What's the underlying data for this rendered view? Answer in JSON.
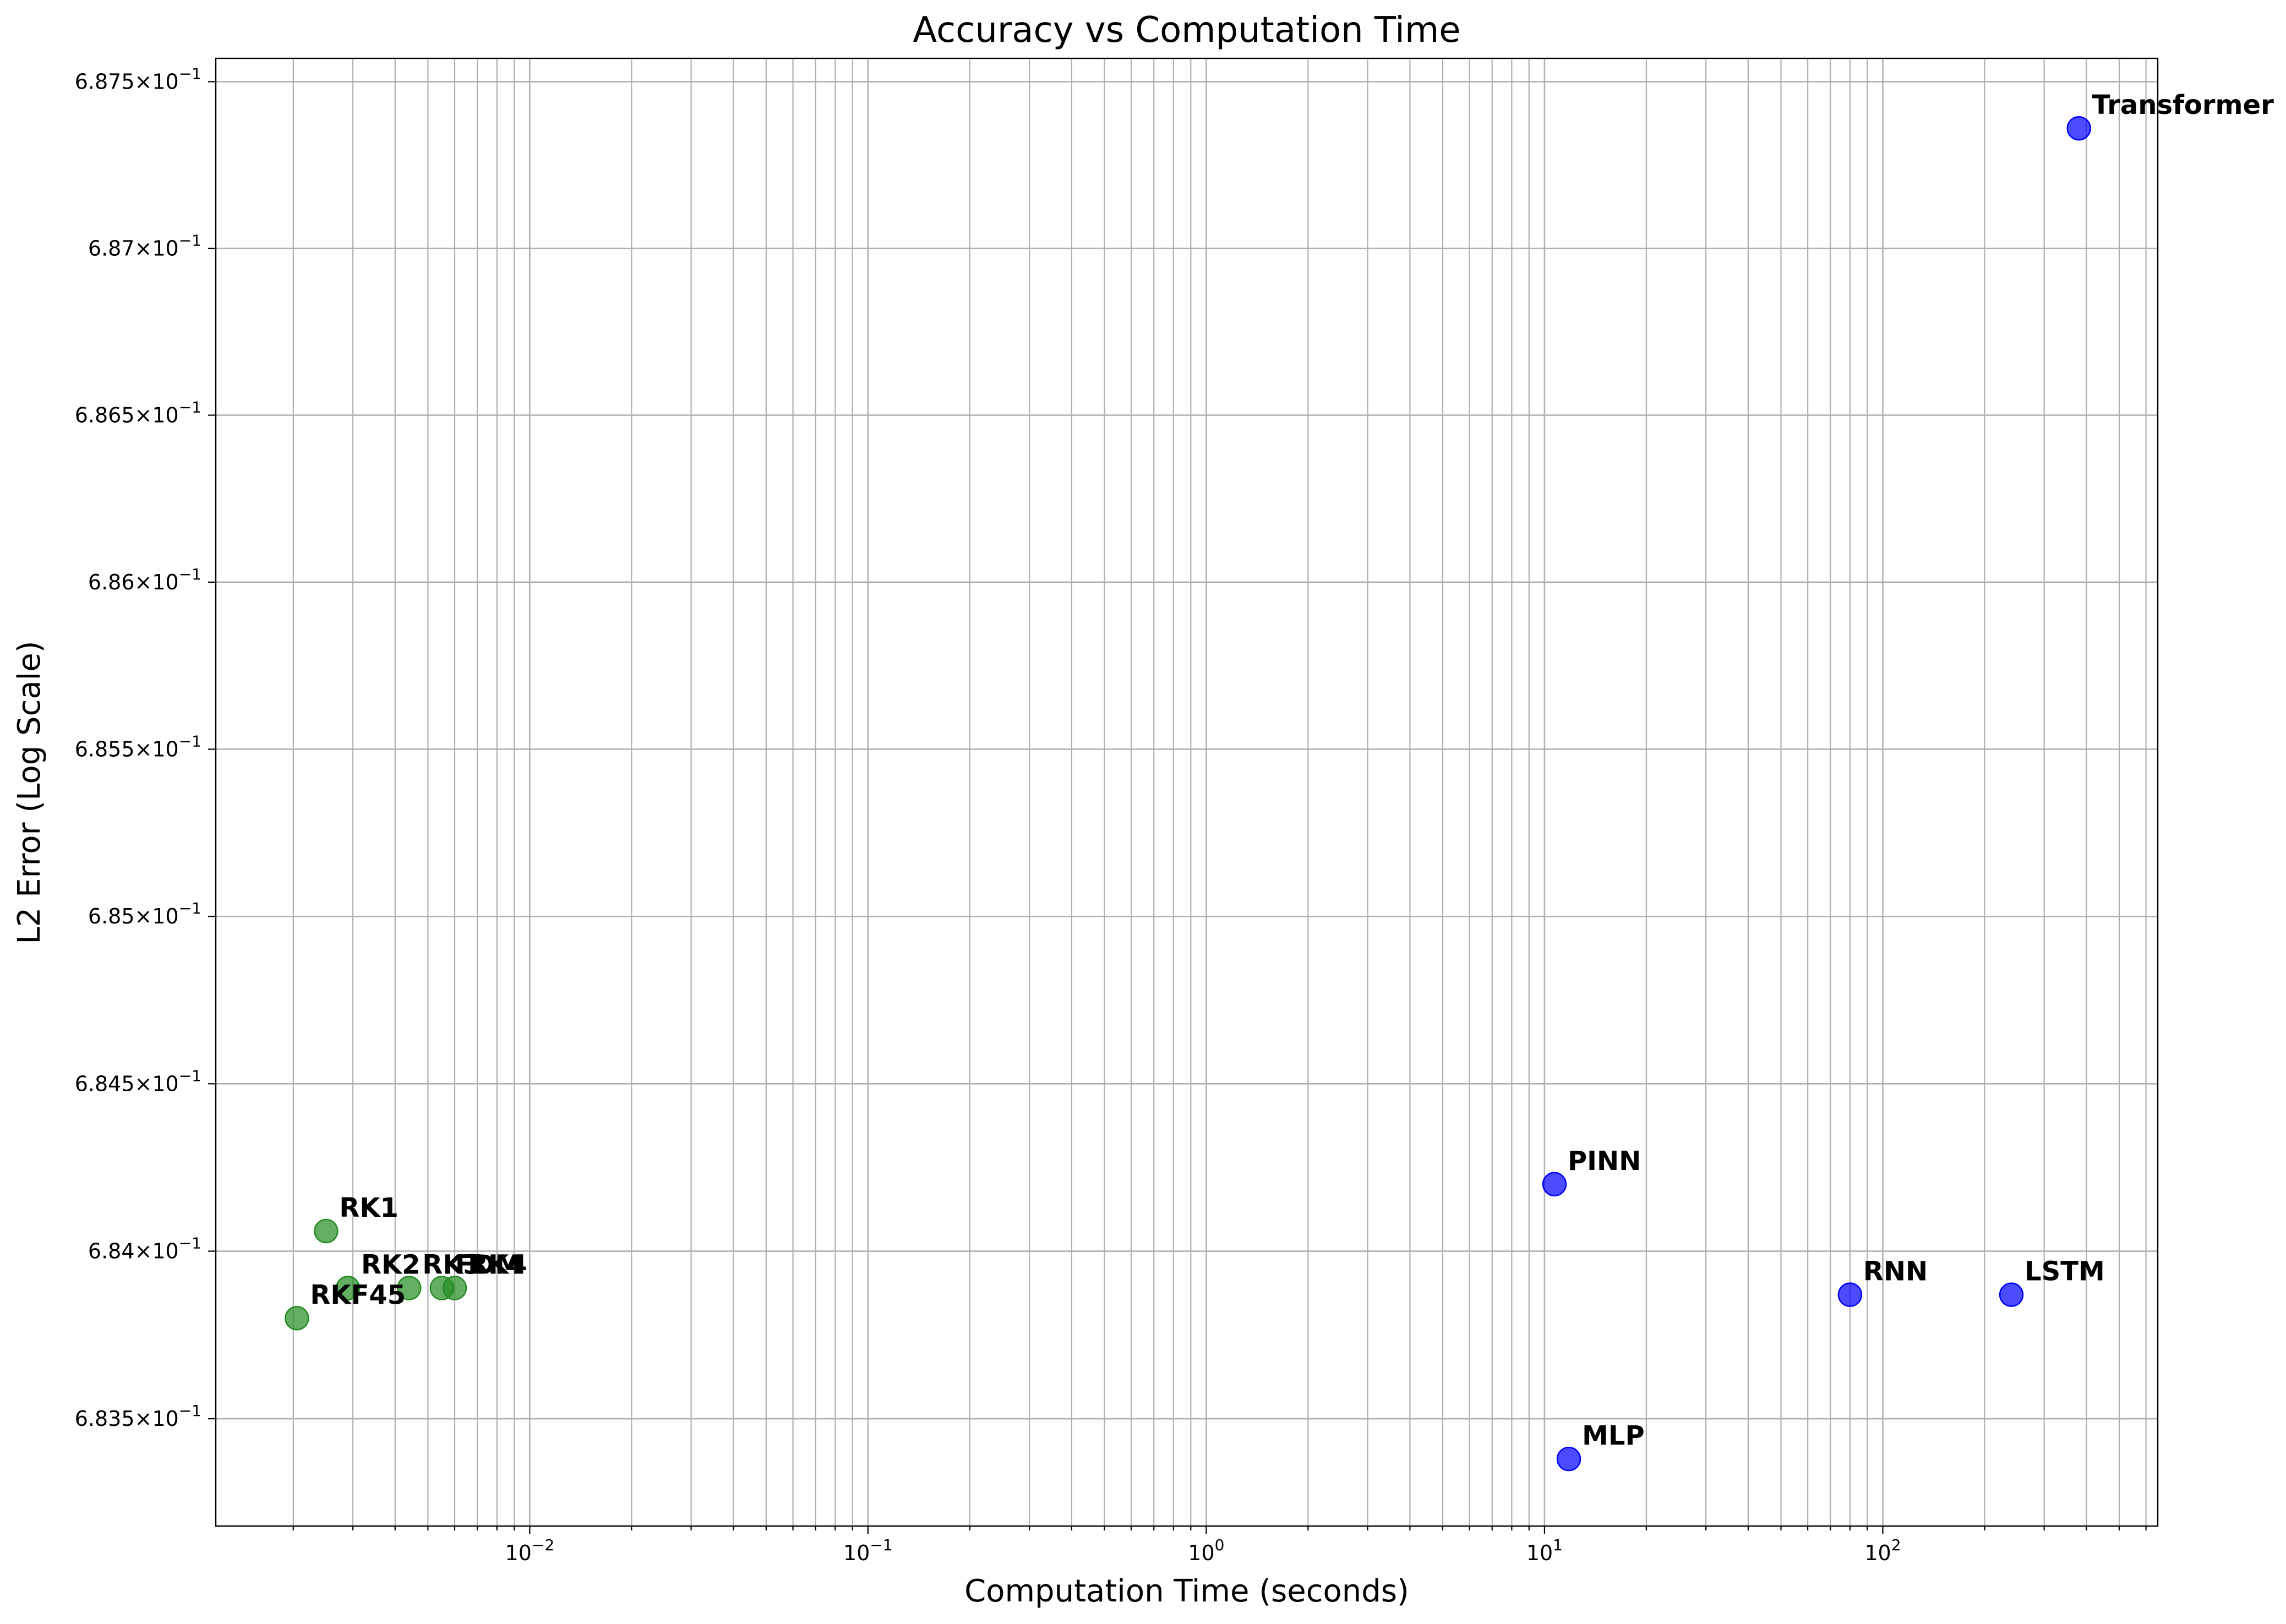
{
  "chart_data": {
    "type": "scatter",
    "title": "Accuracy vs Computation Time",
    "xlabel": "Computation Time (seconds)",
    "ylabel": "L2 Error (Log Scale)",
    "xscale": "log",
    "yscale": "log",
    "xlim": [
      0.00118,
      650
    ],
    "ylim": [
      0.68318,
      0.68757
    ],
    "grid": true,
    "x_ticks": [
      {
        "value": 0.01,
        "base": "10",
        "exp": "−2"
      },
      {
        "value": 0.1,
        "base": "10",
        "exp": "−1"
      },
      {
        "value": 1,
        "base": "10",
        "exp": "0"
      },
      {
        "value": 10,
        "base": "10",
        "exp": "1"
      },
      {
        "value": 100,
        "base": "10",
        "exp": "2"
      }
    ],
    "y_ticks": [
      {
        "value": 0.6835,
        "mantissa": "6.835",
        "base": "10",
        "exp": "−1"
      },
      {
        "value": 0.684,
        "mantissa": "6.84",
        "base": "10",
        "exp": "−1"
      },
      {
        "value": 0.6845,
        "mantissa": "6.845",
        "base": "10",
        "exp": "−1"
      },
      {
        "value": 0.685,
        "mantissa": "6.85",
        "base": "10",
        "exp": "−1"
      },
      {
        "value": 0.6855,
        "mantissa": "6.855",
        "base": "10",
        "exp": "−1"
      },
      {
        "value": 0.686,
        "mantissa": "6.86",
        "base": "10",
        "exp": "−1"
      },
      {
        "value": 0.6865,
        "mantissa": "6.865",
        "base": "10",
        "exp": "−1"
      },
      {
        "value": 0.687,
        "mantissa": "6.87",
        "base": "10",
        "exp": "−1"
      },
      {
        "value": 0.6875,
        "mantissa": "6.875",
        "base": "10",
        "exp": "−1"
      }
    ],
    "series": [
      {
        "color": "#228b22",
        "points": [
          {
            "label": "RK1",
            "x": 0.0025,
            "y": 0.68406
          },
          {
            "label": "RK2",
            "x": 0.0029,
            "y": 0.68389
          },
          {
            "label": "RK3",
            "x": 0.0044,
            "y": 0.68389
          },
          {
            "label": "FDM",
            "x": 0.0055,
            "y": 0.68389
          },
          {
            "label": "RK4",
            "x": 0.006,
            "y": 0.68389
          },
          {
            "label": "RKF45",
            "x": 0.00205,
            "y": 0.6838
          }
        ]
      },
      {
        "color": "#0000ff",
        "points": [
          {
            "label": "PINN",
            "x": 10.7,
            "y": 0.6842
          },
          {
            "label": "MLP",
            "x": 11.8,
            "y": 0.68338
          },
          {
            "label": "RNN",
            "x": 80,
            "y": 0.68387
          },
          {
            "label": "LSTM",
            "x": 240,
            "y": 0.68387
          },
          {
            "label": "Transformer",
            "x": 380,
            "y": 0.68736
          }
        ]
      }
    ]
  }
}
